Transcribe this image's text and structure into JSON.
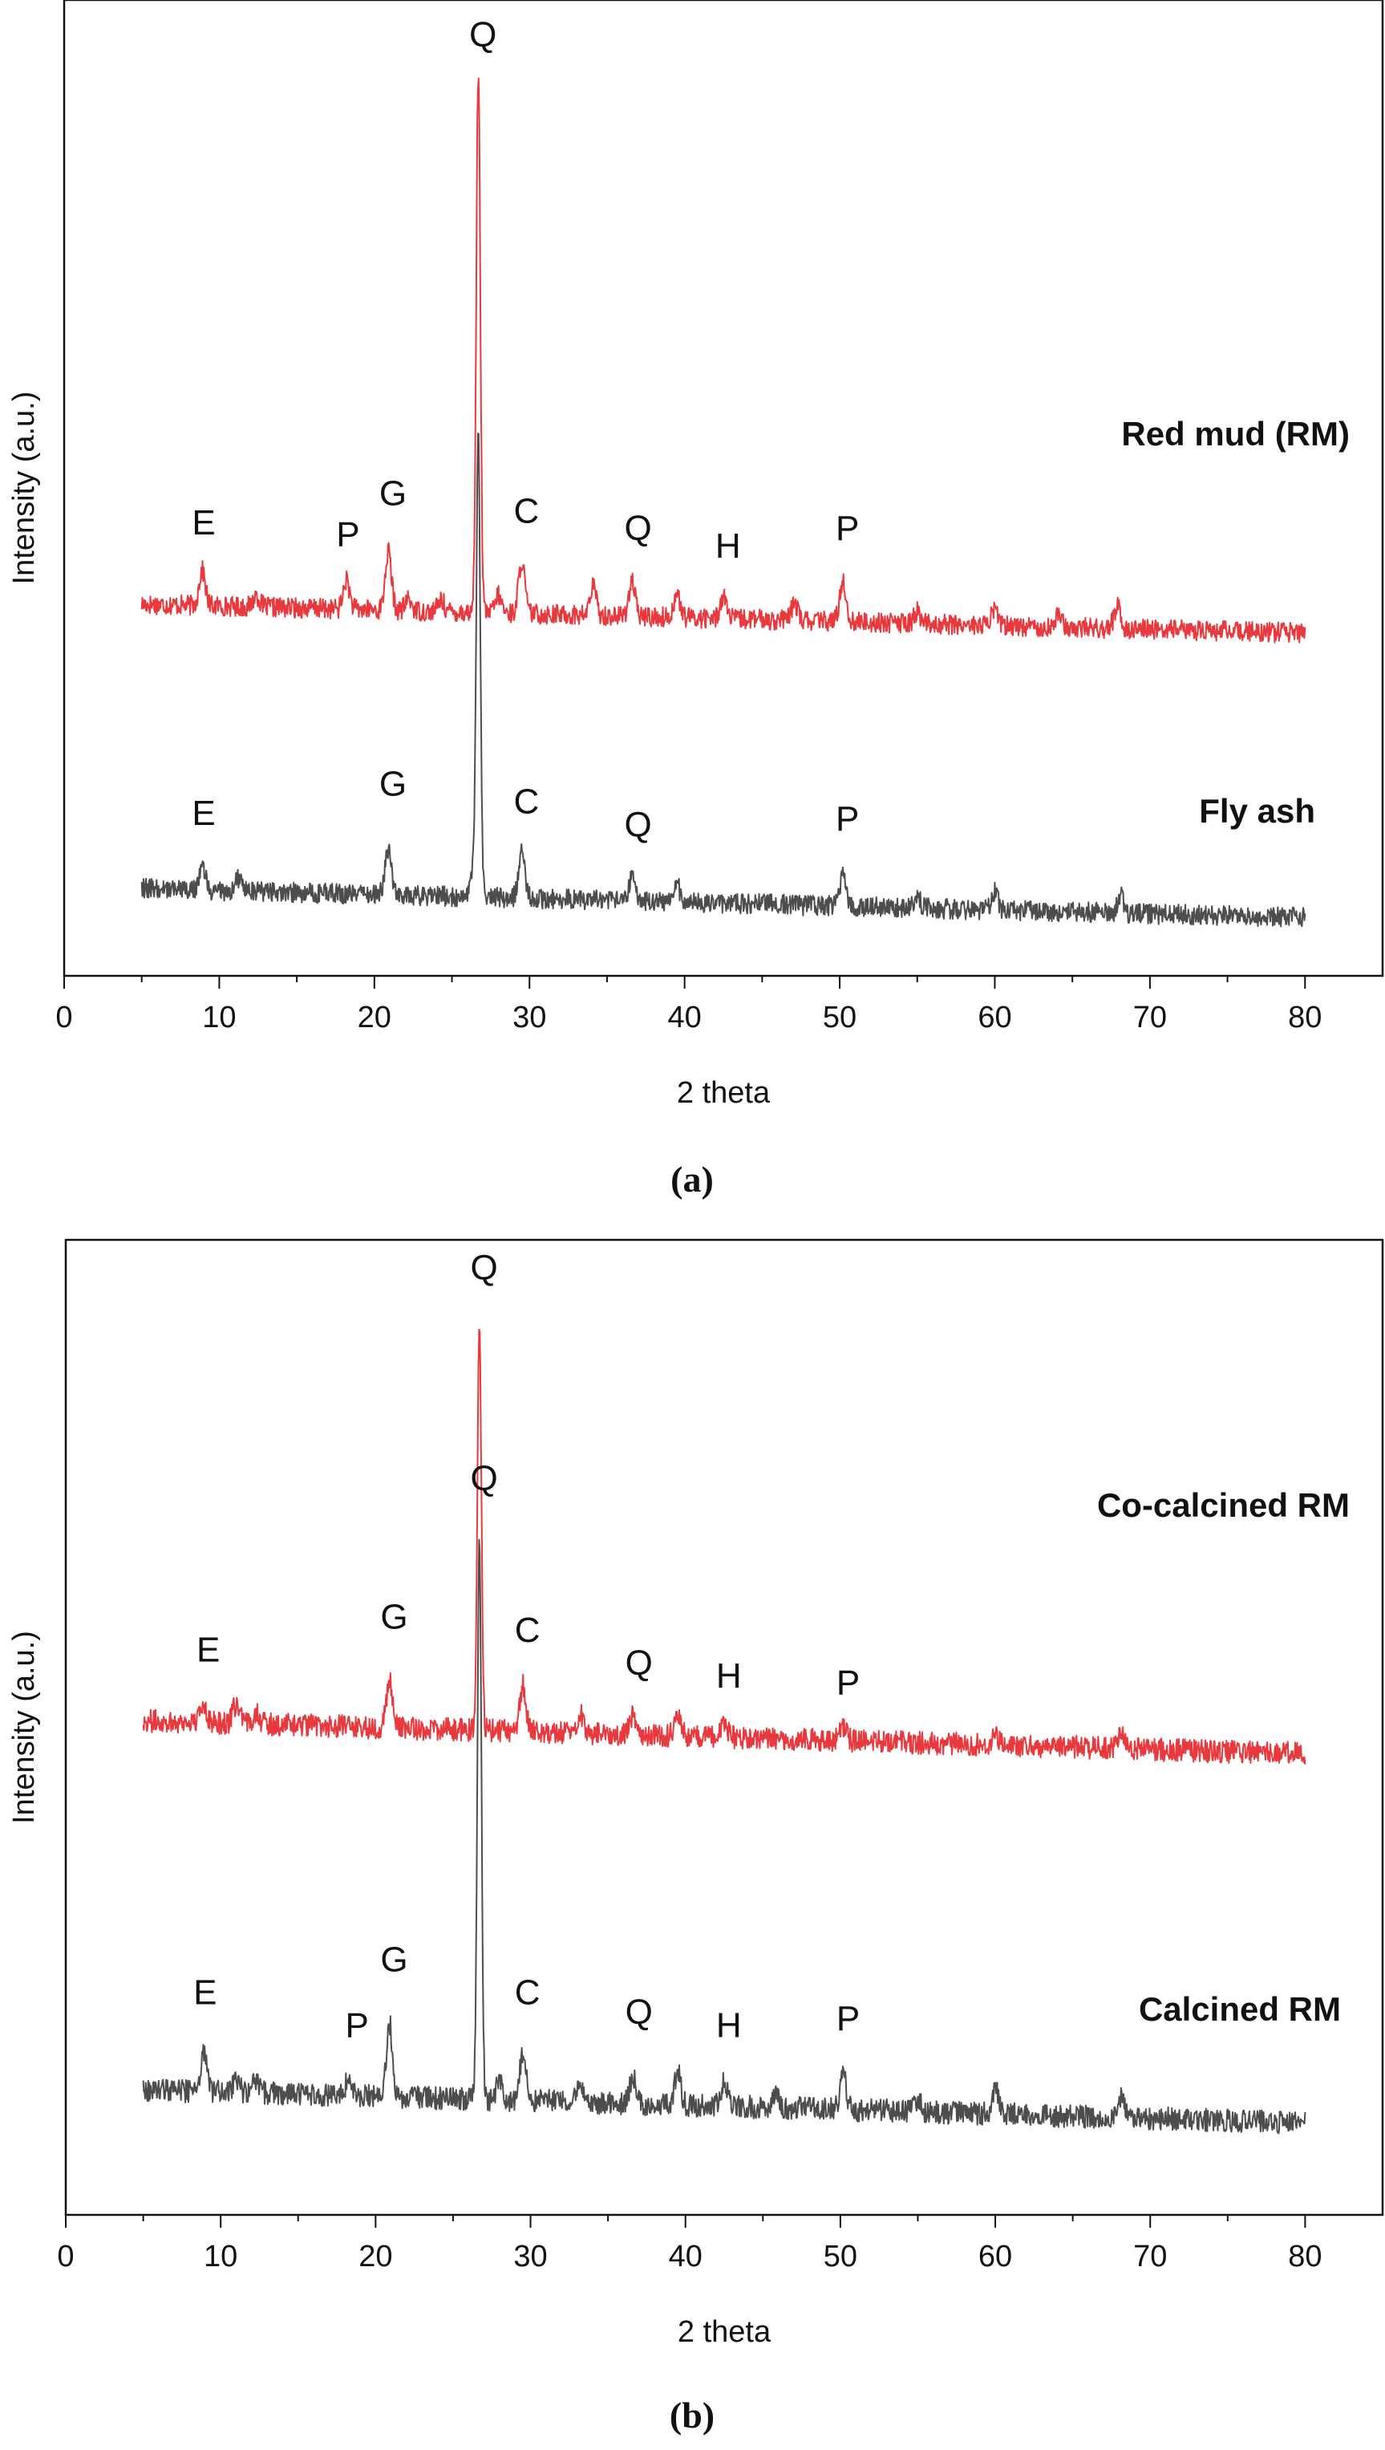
{
  "chart_data": [
    {
      "type": "line",
      "caption": "(a)",
      "xlabel": "2 theta",
      "ylabel": "Intensity (a.u.)",
      "xlim": [
        0,
        85
      ],
      "xticks": [
        0,
        10,
        20,
        30,
        40,
        50,
        60,
        70,
        80
      ],
      "xtick_labels": [
        "0",
        "10",
        "20",
        "30",
        "40",
        "50",
        "60",
        "70",
        "80"
      ],
      "grid": false,
      "legend": "none",
      "series": [
        {
          "name": "Red mud (RM)",
          "color": "#e8393f",
          "x_range": [
            5,
            80
          ],
          "baseline_start": 0.64,
          "baseline_end": 0.59,
          "peaks": [
            {
              "x": 8.9,
              "h": 0.06
            },
            {
              "x": 12.4,
              "h": 0.02
            },
            {
              "x": 18.2,
              "h": 0.05
            },
            {
              "x": 20.9,
              "h": 0.1
            },
            {
              "x": 22.2,
              "h": 0.02
            },
            {
              "x": 24.3,
              "h": 0.02
            },
            {
              "x": 26.7,
              "h": 0.93
            },
            {
              "x": 28.0,
              "h": 0.03
            },
            {
              "x": 29.5,
              "h": 0.09
            },
            {
              "x": 34.1,
              "h": 0.05
            },
            {
              "x": 36.6,
              "h": 0.06
            },
            {
              "x": 39.5,
              "h": 0.04
            },
            {
              "x": 42.5,
              "h": 0.04
            },
            {
              "x": 47.1,
              "h": 0.03
            },
            {
              "x": 50.2,
              "h": 0.07
            },
            {
              "x": 55.0,
              "h": 0.02
            },
            {
              "x": 60.0,
              "h": 0.03
            },
            {
              "x": 64.1,
              "h": 0.02
            },
            {
              "x": 67.9,
              "h": 0.04
            }
          ],
          "labels": [
            {
              "text": "E",
              "x": 9.0,
              "y": 0.76
            },
            {
              "text": "P",
              "x": 18.3,
              "y": 0.74
            },
            {
              "text": "G",
              "x": 21.2,
              "y": 0.81
            },
            {
              "text": "Q",
              "x": 27.0,
              "y": 1.6
            },
            {
              "text": "C",
              "x": 29.8,
              "y": 0.78
            },
            {
              "text": "Q",
              "x": 37.0,
              "y": 0.75
            },
            {
              "text": "H",
              "x": 42.8,
              "y": 0.72
            },
            {
              "text": "P",
              "x": 50.5,
              "y": 0.75
            }
          ]
        },
        {
          "name": "Fly ash",
          "color": "#4d4d4d",
          "x_range": [
            5,
            80
          ],
          "baseline_start": 0.15,
          "baseline_end": 0.1,
          "peaks": [
            {
              "x": 8.9,
              "h": 0.04
            },
            {
              "x": 11.2,
              "h": 0.02
            },
            {
              "x": 20.9,
              "h": 0.08
            },
            {
              "x": 26.4,
              "h": 0.04
            },
            {
              "x": 26.7,
              "h": 0.78
            },
            {
              "x": 29.5,
              "h": 0.08
            },
            {
              "x": 36.6,
              "h": 0.04
            },
            {
              "x": 39.5,
              "h": 0.03
            },
            {
              "x": 50.2,
              "h": 0.05
            },
            {
              "x": 55.0,
              "h": 0.02
            },
            {
              "x": 60.0,
              "h": 0.03
            },
            {
              "x": 68.1,
              "h": 0.03
            }
          ],
          "labels": [
            {
              "text": "E",
              "x": 9.0,
              "y": 0.26
            },
            {
              "text": "G",
              "x": 21.2,
              "y": 0.31
            },
            {
              "text": "C",
              "x": 29.8,
              "y": 0.28
            },
            {
              "text": "Q",
              "x": 37.0,
              "y": 0.24
            },
            {
              "text": "P",
              "x": 50.5,
              "y": 0.25
            }
          ]
        }
      ]
    },
    {
      "type": "line",
      "caption": "(b)",
      "xlabel": "2 theta",
      "ylabel": "Intensity (a.u.)",
      "xlim": [
        0,
        85
      ],
      "xticks": [
        0,
        10,
        20,
        30,
        40,
        50,
        60,
        70,
        80
      ],
      "xtick_labels": [
        "0",
        "10",
        "20",
        "30",
        "40",
        "50",
        "60",
        "70",
        "80"
      ],
      "grid": false,
      "legend": "none",
      "series": [
        {
          "name": "Co-calcined RM",
          "color": "#e8393f",
          "x_range": [
            5,
            80
          ],
          "baseline_start": 0.75,
          "baseline_end": 0.7,
          "peaks": [
            {
              "x": 8.9,
              "h": 0.03
            },
            {
              "x": 11.0,
              "h": 0.03
            },
            {
              "x": 12.3,
              "h": 0.02
            },
            {
              "x": 20.9,
              "h": 0.07
            },
            {
              "x": 26.7,
              "h": 0.6
            },
            {
              "x": 29.5,
              "h": 0.07
            },
            {
              "x": 33.2,
              "h": 0.03
            },
            {
              "x": 36.6,
              "h": 0.03
            },
            {
              "x": 39.5,
              "h": 0.03
            },
            {
              "x": 42.5,
              "h": 0.02
            },
            {
              "x": 50.2,
              "h": 0.02
            },
            {
              "x": 60.0,
              "h": 0.02
            },
            {
              "x": 68.1,
              "h": 0.02
            }
          ],
          "labels": [
            {
              "text": "E",
              "x": 9.2,
              "y": 0.84
            },
            {
              "text": "G",
              "x": 21.2,
              "y": 0.89
            },
            {
              "text": "Q",
              "x": 27.0,
              "y": 1.42
            },
            {
              "text": "C",
              "x": 29.8,
              "y": 0.87
            },
            {
              "text": "Q",
              "x": 37.0,
              "y": 0.82
            },
            {
              "text": "H",
              "x": 42.8,
              "y": 0.8
            },
            {
              "text": "P",
              "x": 50.5,
              "y": 0.79
            }
          ]
        },
        {
          "name": "Calcined RM",
          "color": "#4d4d4d",
          "x_range": [
            5,
            80
          ],
          "baseline_start": 0.19,
          "baseline_end": 0.14,
          "peaks": [
            {
              "x": 8.9,
              "h": 0.06
            },
            {
              "x": 11.0,
              "h": 0.02
            },
            {
              "x": 12.3,
              "h": 0.02
            },
            {
              "x": 18.2,
              "h": 0.02
            },
            {
              "x": 20.9,
              "h": 0.11
            },
            {
              "x": 26.7,
              "h": 0.85
            },
            {
              "x": 28.0,
              "h": 0.03
            },
            {
              "x": 29.5,
              "h": 0.07
            },
            {
              "x": 33.2,
              "h": 0.02
            },
            {
              "x": 36.6,
              "h": 0.04
            },
            {
              "x": 39.5,
              "h": 0.05
            },
            {
              "x": 42.5,
              "h": 0.04
            },
            {
              "x": 45.8,
              "h": 0.02
            },
            {
              "x": 50.2,
              "h": 0.05
            },
            {
              "x": 55.0,
              "h": 0.02
            },
            {
              "x": 60.0,
              "h": 0.04
            },
            {
              "x": 68.1,
              "h": 0.03
            }
          ],
          "labels": [
            {
              "text": "E",
              "x": 9.0,
              "y": 0.32
            },
            {
              "text": "P",
              "x": 18.8,
              "y": 0.27
            },
            {
              "text": "G",
              "x": 21.2,
              "y": 0.37
            },
            {
              "text": "Q",
              "x": 27.0,
              "y": 1.1
            },
            {
              "text": "C",
              "x": 29.8,
              "y": 0.32
            },
            {
              "text": "Q",
              "x": 37.0,
              "y": 0.29
            },
            {
              "text": "H",
              "x": 42.8,
              "y": 0.27
            },
            {
              "text": "P",
              "x": 50.5,
              "y": 0.28
            }
          ]
        }
      ]
    }
  ]
}
